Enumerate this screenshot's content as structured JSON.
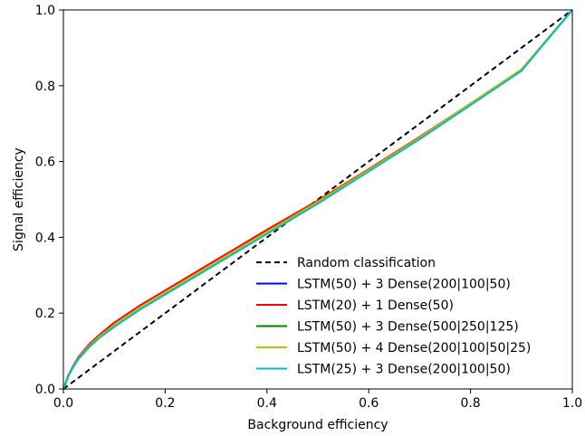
{
  "chart_data": {
    "type": "line",
    "xlabel": "Background efficiency",
    "ylabel": "Signal efficiency",
    "xlim": [
      0,
      1
    ],
    "ylim": [
      0,
      1
    ],
    "xticks": [
      "0.0",
      "0.2",
      "0.4",
      "0.6",
      "0.8",
      "1.0"
    ],
    "yticks": [
      "0.0",
      "0.2",
      "0.4",
      "0.6",
      "0.8",
      "1.0"
    ],
    "grid": false,
    "legend_position": "lower-right",
    "reference": {
      "name": "Random classification",
      "color": "#000000",
      "style": "dashed",
      "x": [
        0,
        1
      ],
      "y": [
        0,
        1
      ]
    },
    "series": [
      {
        "name": "LSTM(50) + 3 Dense(200|100|50)",
        "color": "#0000ff",
        "x": [
          0,
          0.01,
          0.02,
          0.03,
          0.05,
          0.07,
          0.1,
          0.15,
          0.2,
          0.3,
          0.4,
          0.5,
          0.6,
          0.7,
          0.8,
          0.9,
          1.0
        ],
        "y": [
          0,
          0.035,
          0.06,
          0.08,
          0.11,
          0.135,
          0.165,
          0.21,
          0.25,
          0.33,
          0.41,
          0.49,
          0.575,
          0.66,
          0.75,
          0.84,
          1.0
        ]
      },
      {
        "name": "LSTM(20) + 1 Dense(50)",
        "color": "#ff0000",
        "x": [
          0,
          0.01,
          0.02,
          0.03,
          0.05,
          0.07,
          0.1,
          0.15,
          0.2,
          0.3,
          0.4,
          0.5,
          0.6,
          0.7,
          0.8,
          0.9,
          1.0
        ],
        "y": [
          0,
          0.037,
          0.063,
          0.085,
          0.117,
          0.142,
          0.175,
          0.22,
          0.26,
          0.34,
          0.42,
          0.497,
          0.58,
          0.665,
          0.753,
          0.843,
          1.0
        ]
      },
      {
        "name": "LSTM(50) + 3 Dense(500|250|125)",
        "color": "#008000",
        "x": [
          0,
          0.01,
          0.02,
          0.03,
          0.05,
          0.07,
          0.1,
          0.15,
          0.2,
          0.3,
          0.4,
          0.5,
          0.6,
          0.7,
          0.8,
          0.9,
          1.0
        ],
        "y": [
          0,
          0.035,
          0.06,
          0.08,
          0.11,
          0.135,
          0.166,
          0.211,
          0.251,
          0.331,
          0.411,
          0.491,
          0.576,
          0.661,
          0.751,
          0.841,
          1.0
        ]
      },
      {
        "name": "LSTM(50) + 4 Dense(200|100|50|25)",
        "color": "#bfbf00",
        "x": [
          0,
          0.01,
          0.02,
          0.03,
          0.05,
          0.07,
          0.1,
          0.15,
          0.2,
          0.3,
          0.4,
          0.5,
          0.6,
          0.7,
          0.8,
          0.9,
          1.0
        ],
        "y": [
          0,
          0.036,
          0.061,
          0.082,
          0.113,
          0.138,
          0.168,
          0.214,
          0.254,
          0.334,
          0.414,
          0.494,
          0.578,
          0.663,
          0.753,
          0.843,
          1.0
        ]
      },
      {
        "name": "LSTM(25) + 3 Dense(200|100|50)",
        "color": "#00bfbf",
        "x": [
          0,
          0.01,
          0.02,
          0.03,
          0.05,
          0.07,
          0.1,
          0.15,
          0.2,
          0.3,
          0.4,
          0.5,
          0.6,
          0.7,
          0.8,
          0.9,
          1.0
        ],
        "y": [
          0,
          0.035,
          0.06,
          0.08,
          0.11,
          0.134,
          0.164,
          0.209,
          0.249,
          0.329,
          0.409,
          0.489,
          0.574,
          0.659,
          0.749,
          0.839,
          1.0
        ]
      }
    ]
  }
}
